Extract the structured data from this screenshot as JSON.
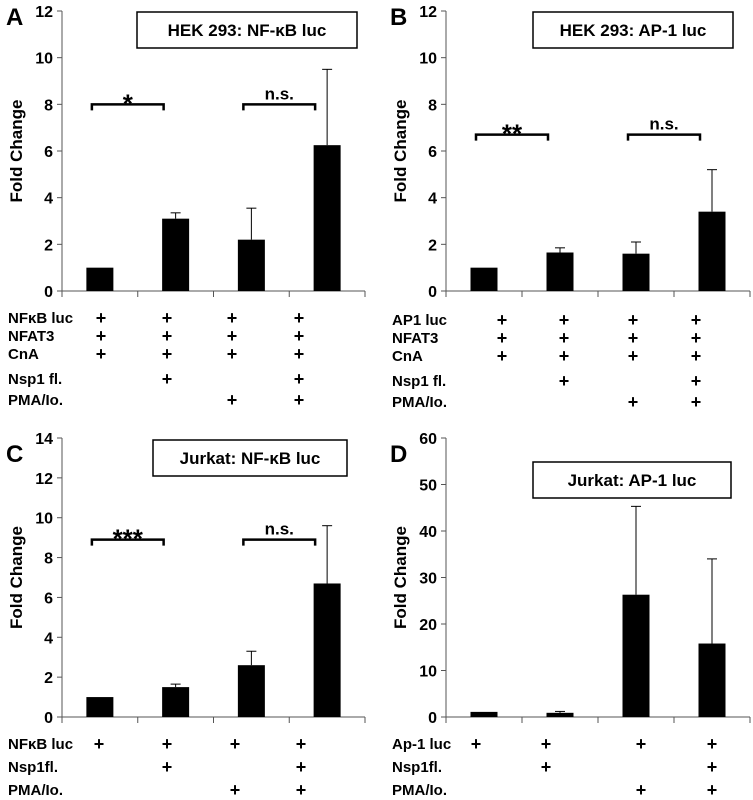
{
  "chart_data": [
    {
      "panel": "A",
      "type": "bar",
      "title": "HEK 293: NF-κB luc",
      "ylabel": "Fold Change",
      "ylim": [
        0,
        12
      ],
      "yticks": [
        0,
        2,
        4,
        6,
        8,
        10,
        12
      ],
      "values": [
        1.0,
        3.1,
        2.2,
        6.25
      ],
      "errors": [
        0,
        0.25,
        1.35,
        3.25
      ],
      "conditions": [
        {
          "label": "NFκB luc",
          "marks": [
            true,
            true,
            true,
            true
          ]
        },
        {
          "label": "NFAT3",
          "marks": [
            true,
            true,
            true,
            true
          ]
        },
        {
          "label": "CnA",
          "marks": [
            true,
            true,
            true,
            true
          ]
        },
        {
          "label": "Nsp1 fl.",
          "marks": [
            false,
            true,
            false,
            true
          ]
        },
        {
          "label": "PMA/Io.",
          "marks": [
            false,
            false,
            true,
            true
          ]
        }
      ],
      "mark_symbol": "+",
      "significance": [
        {
          "from": 0,
          "to": 1,
          "label": "*",
          "y": 8.0
        },
        {
          "from": 2,
          "to": 3,
          "label": "n.s.",
          "y": 8.0
        }
      ]
    },
    {
      "panel": "B",
      "type": "bar",
      "title": "HEK 293: AP-1 luc",
      "ylabel": "Fold Change",
      "ylim": [
        0,
        12
      ],
      "yticks": [
        0,
        2,
        4,
        6,
        8,
        10,
        12
      ],
      "values": [
        1.0,
        1.65,
        1.6,
        3.4
      ],
      "errors": [
        0,
        0.2,
        0.5,
        1.8
      ],
      "conditions": [
        {
          "label": "AP1 luc",
          "marks": [
            true,
            true,
            true,
            true
          ]
        },
        {
          "label": "NFAT3",
          "marks": [
            true,
            true,
            true,
            true
          ]
        },
        {
          "label": "CnA",
          "marks": [
            true,
            true,
            true,
            true
          ]
        },
        {
          "label": "Nsp1 fl.",
          "marks": [
            false,
            true,
            false,
            true
          ]
        },
        {
          "label": "PMA/Io.",
          "marks": [
            false,
            false,
            true,
            true
          ]
        }
      ],
      "mark_symbol": "+",
      "significance": [
        {
          "from": 0,
          "to": 1,
          "label": "**",
          "y": 6.7
        },
        {
          "from": 2,
          "to": 3,
          "label": "n.s.",
          "y": 6.7
        }
      ]
    },
    {
      "panel": "C",
      "type": "bar",
      "title": "Jurkat: NF-κB luc",
      "ylabel": "Fold Change",
      "ylim": [
        0,
        14
      ],
      "yticks": [
        0,
        2,
        4,
        6,
        8,
        10,
        12,
        14
      ],
      "values": [
        1.0,
        1.5,
        2.6,
        6.7
      ],
      "errors": [
        0,
        0.15,
        0.7,
        2.9
      ],
      "conditions": [
        {
          "label": "NFκB luc",
          "marks": [
            true,
            true,
            true,
            true
          ]
        },
        {
          "label": "Nsp1fl.",
          "marks": [
            false,
            true,
            false,
            true
          ]
        },
        {
          "label": "PMA/Io.",
          "marks": [
            false,
            false,
            true,
            true
          ]
        }
      ],
      "mark_symbol": "+",
      "significance": [
        {
          "from": 0,
          "to": 1,
          "label": "***",
          "y": 8.9
        },
        {
          "from": 2,
          "to": 3,
          "label": "n.s.",
          "y": 8.9
        }
      ]
    },
    {
      "panel": "D",
      "type": "bar",
      "title": "Jurkat: AP-1 luc",
      "ylabel": "Fold Change",
      "ylim": [
        0,
        60
      ],
      "yticks": [
        0,
        10,
        20,
        30,
        40,
        50,
        60
      ],
      "values": [
        1.1,
        0.9,
        26.3,
        15.8
      ],
      "errors": [
        0,
        0.3,
        19.0,
        18.2
      ],
      "conditions": [
        {
          "label": "Ap-1 luc",
          "marks": [
            true,
            true,
            true,
            true
          ]
        },
        {
          "label": "Nsp1fl.",
          "marks": [
            false,
            true,
            false,
            true
          ]
        },
        {
          "label": "PMA/Io.",
          "marks": [
            false,
            false,
            true,
            true
          ]
        }
      ],
      "mark_symbol": "+",
      "significance": []
    }
  ]
}
